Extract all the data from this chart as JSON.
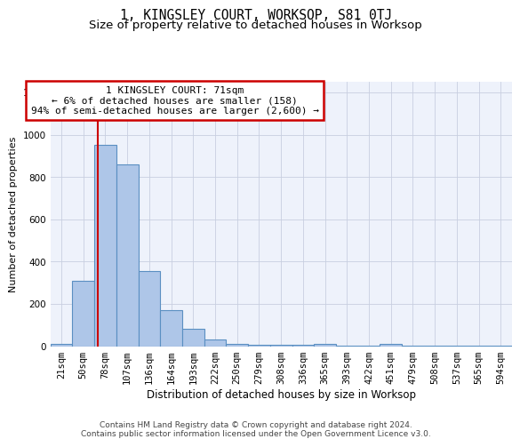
{
  "title1": "1, KINGSLEY COURT, WORKSOP, S81 0TJ",
  "title2": "Size of property relative to detached houses in Worksop",
  "xlabel": "Distribution of detached houses by size in Worksop",
  "ylabel": "Number of detached properties",
  "bar_labels": [
    "21sqm",
    "50sqm",
    "78sqm",
    "107sqm",
    "136sqm",
    "164sqm",
    "193sqm",
    "222sqm",
    "250sqm",
    "279sqm",
    "308sqm",
    "336sqm",
    "365sqm",
    "393sqm",
    "422sqm",
    "451sqm",
    "479sqm",
    "508sqm",
    "537sqm",
    "565sqm",
    "594sqm"
  ],
  "bar_values": [
    10,
    310,
    950,
    860,
    355,
    172,
    80,
    30,
    10,
    5,
    5,
    5,
    10,
    3,
    1,
    10,
    1,
    1,
    1,
    1,
    1
  ],
  "bar_color": "#aec6e8",
  "bar_edgecolor": "#5a8fc2",
  "bg_color": "#eef2fb",
  "grid_color": "#c8cfe0",
  "annotation_text": "1 KINGSLEY COURT: 71sqm\n← 6% of detached houses are smaller (158)\n94% of semi-detached houses are larger (2,600) →",
  "annotation_box_color": "#ffffff",
  "annotation_box_edgecolor": "#cc0000",
  "vline_color": "#cc0000",
  "vline_x": 1.65,
  "ylim": [
    0,
    1250
  ],
  "yticks": [
    0,
    200,
    400,
    600,
    800,
    1000,
    1200
  ],
  "footer_text": "Contains HM Land Registry data © Crown copyright and database right 2024.\nContains public sector information licensed under the Open Government Licence v3.0.",
  "title1_fontsize": 10.5,
  "title2_fontsize": 9.5,
  "xlabel_fontsize": 8.5,
  "ylabel_fontsize": 8,
  "tick_fontsize": 7.5,
  "annotation_fontsize": 8,
  "footer_fontsize": 6.5
}
